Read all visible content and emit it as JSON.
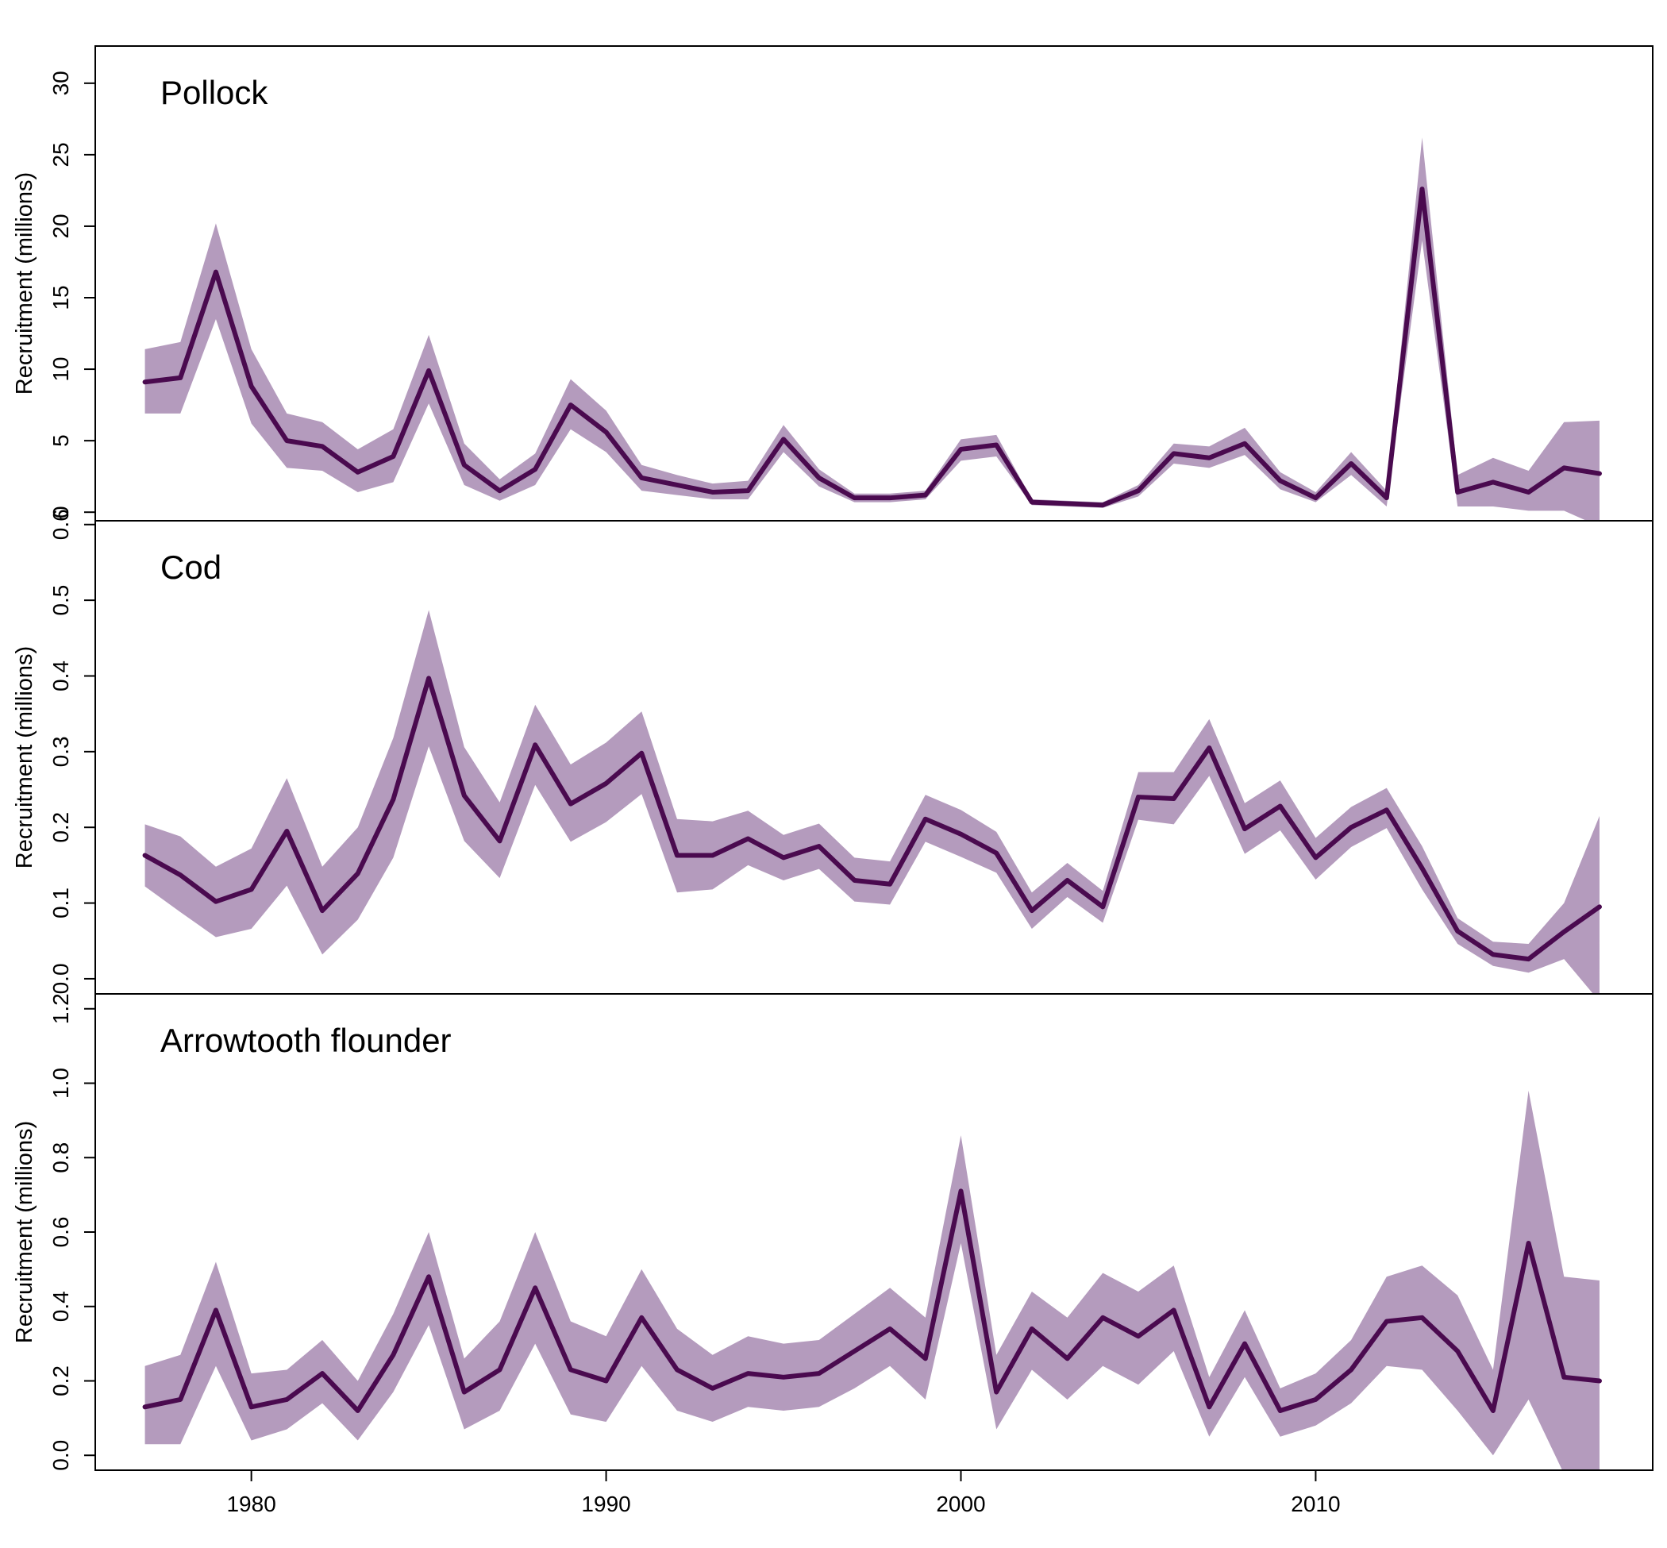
{
  "colors": {
    "line": "#4a0a4f",
    "band": "#b49bbd",
    "axis": "#000000"
  },
  "chart_data": [
    {
      "type": "line",
      "title": "Pollock",
      "ylabel": "Recruitment (millions)",
      "ylim": [
        -0.6,
        32.6
      ],
      "yticks": [
        0,
        5,
        10,
        15,
        20,
        25,
        30
      ],
      "ytick_labels": [
        "0",
        "5",
        "10",
        "15",
        "20",
        "25",
        "30"
      ],
      "x": [
        1977,
        1978,
        1979,
        1980,
        1981,
        1982,
        1983,
        1984,
        1985,
        1986,
        1987,
        1988,
        1989,
        1990,
        1991,
        1992,
        1993,
        1994,
        1995,
        1996,
        1997,
        1998,
        1999,
        2000,
        2001,
        2002,
        2003,
        2004,
        2005,
        2006,
        2007,
        2008,
        2009,
        2010,
        2011,
        2012,
        2013,
        2014,
        2015,
        2016,
        2017,
        2018
      ],
      "series": [
        {
          "values": [
            9.1,
            9.4,
            16.8,
            8.8,
            5.0,
            4.6,
            2.8,
            3.9,
            9.9,
            3.3,
            1.5,
            3.0,
            7.5,
            5.6,
            2.4,
            1.9,
            1.4,
            1.5,
            5.1,
            2.4,
            1.0,
            1.0,
            1.2,
            4.4,
            4.7,
            0.7,
            0.6,
            0.5,
            1.5,
            4.1,
            3.8,
            4.8,
            2.2,
            1.0,
            3.4,
            1.0,
            22.6,
            1.4,
            2.1,
            1.4,
            3.1,
            2.7
          ],
          "lower": [
            6.9,
            6.9,
            13.5,
            6.2,
            3.1,
            2.9,
            1.4,
            2.1,
            7.6,
            1.9,
            0.8,
            1.9,
            5.8,
            4.2,
            1.5,
            1.2,
            0.9,
            0.9,
            4.2,
            1.8,
            0.7,
            0.7,
            0.9,
            3.6,
            3.9,
            0.5,
            0.4,
            0.3,
            1.1,
            3.4,
            3.1,
            4.0,
            1.6,
            0.7,
            2.6,
            0.4,
            19.0,
            0.4,
            0.4,
            0.1,
            0.1,
            -1.0
          ],
          "upper": [
            11.4,
            11.9,
            20.2,
            11.4,
            6.9,
            6.3,
            4.4,
            5.8,
            12.4,
            4.8,
            2.3,
            4.1,
            9.3,
            7.1,
            3.3,
            2.6,
            2.0,
            2.2,
            6.1,
            3.0,
            1.3,
            1.3,
            1.5,
            5.1,
            5.4,
            0.9,
            0.8,
            0.7,
            1.9,
            4.8,
            4.6,
            5.9,
            2.8,
            1.4,
            4.2,
            1.5,
            26.2,
            2.6,
            3.8,
            2.9,
            6.3,
            6.4
          ]
        }
      ]
    },
    {
      "type": "line",
      "title": "Cod",
      "ylabel": "Recruitment (millions)",
      "ylim": [
        -0.02,
        0.605
      ],
      "yticks": [
        0.0,
        0.1,
        0.2,
        0.3,
        0.4,
        0.5,
        0.6
      ],
      "ytick_labels": [
        "0.0",
        "0.1",
        "0.2",
        "0.3",
        "0.4",
        "0.5",
        "0.6"
      ],
      "x": [
        1977,
        1978,
        1979,
        1980,
        1981,
        1982,
        1983,
        1984,
        1985,
        1986,
        1987,
        1988,
        1989,
        1990,
        1991,
        1992,
        1993,
        1994,
        1995,
        1996,
        1997,
        1998,
        1999,
        2000,
        2001,
        2002,
        2003,
        2004,
        2005,
        2006,
        2007,
        2008,
        2009,
        2010,
        2011,
        2012,
        2013,
        2014,
        2015,
        2016,
        2017,
        2018
      ],
      "series": [
        {
          "values": [
            0.163,
            0.137,
            0.102,
            0.118,
            0.195,
            0.09,
            0.139,
            0.237,
            0.397,
            0.242,
            0.182,
            0.309,
            0.231,
            0.258,
            0.298,
            0.163,
            0.163,
            0.185,
            0.16,
            0.175,
            0.13,
            0.125,
            0.211,
            0.191,
            0.166,
            0.09,
            0.13,
            0.095,
            0.24,
            0.238,
            0.305,
            0.198,
            0.228,
            0.16,
            0.2,
            0.223,
            0.146,
            0.063,
            0.032,
            0.026,
            0.062,
            0.095
          ],
          "lower": [
            0.122,
            0.088,
            0.055,
            0.066,
            0.123,
            0.032,
            0.078,
            0.16,
            0.307,
            0.182,
            0.133,
            0.256,
            0.181,
            0.207,
            0.244,
            0.114,
            0.118,
            0.15,
            0.13,
            0.145,
            0.102,
            0.098,
            0.181,
            0.161,
            0.14,
            0.066,
            0.108,
            0.074,
            0.21,
            0.204,
            0.268,
            0.165,
            0.196,
            0.131,
            0.174,
            0.199,
            0.118,
            0.046,
            0.017,
            0.008,
            0.026,
            -0.03
          ],
          "upper": [
            0.204,
            0.188,
            0.148,
            0.172,
            0.265,
            0.148,
            0.2,
            0.318,
            0.487,
            0.306,
            0.233,
            0.362,
            0.283,
            0.312,
            0.353,
            0.211,
            0.208,
            0.222,
            0.19,
            0.205,
            0.16,
            0.155,
            0.243,
            0.223,
            0.194,
            0.114,
            0.153,
            0.116,
            0.273,
            0.273,
            0.343,
            0.232,
            0.262,
            0.186,
            0.227,
            0.252,
            0.175,
            0.08,
            0.049,
            0.046,
            0.1,
            0.215
          ]
        }
      ]
    },
    {
      "type": "line",
      "title": "Arrowtooth flounder",
      "ylabel": "Recruitment (millions)",
      "ylim": [
        -0.04,
        1.24
      ],
      "yticks": [
        0.0,
        0.2,
        0.4,
        0.6,
        0.8,
        1.0,
        1.2
      ],
      "ytick_labels": [
        "0.0",
        "0.2",
        "0.4",
        "0.6",
        "0.8",
        "1.0",
        "1.2"
      ],
      "x": [
        1977,
        1978,
        1979,
        1980,
        1981,
        1982,
        1983,
        1984,
        1985,
        1986,
        1987,
        1988,
        1989,
        1990,
        1991,
        1992,
        1993,
        1994,
        1995,
        1996,
        1997,
        1998,
        1999,
        2000,
        2001,
        2002,
        2003,
        2004,
        2005,
        2006,
        2007,
        2008,
        2009,
        2010,
        2011,
        2012,
        2013,
        2014,
        2015,
        2016,
        2017,
        2018
      ],
      "xticks": [
        1980,
        1990,
        2000,
        2010
      ],
      "xtick_labels": [
        "1980",
        "1990",
        "2000",
        "2010"
      ],
      "series": [
        {
          "values": [
            0.13,
            0.15,
            0.39,
            0.13,
            0.15,
            0.22,
            0.12,
            0.27,
            0.48,
            0.17,
            0.23,
            0.45,
            0.23,
            0.2,
            0.37,
            0.23,
            0.18,
            0.22,
            0.21,
            0.22,
            0.28,
            0.34,
            0.26,
            0.71,
            0.17,
            0.34,
            0.26,
            0.37,
            0.32,
            0.39,
            0.13,
            0.3,
            0.12,
            0.15,
            0.23,
            0.36,
            0.37,
            0.28,
            0.12,
            0.57,
            0.21,
            0.2
          ],
          "lower": [
            0.03,
            0.03,
            0.24,
            0.04,
            0.07,
            0.14,
            0.04,
            0.17,
            0.35,
            0.07,
            0.12,
            0.3,
            0.11,
            0.09,
            0.24,
            0.12,
            0.09,
            0.13,
            0.12,
            0.13,
            0.18,
            0.24,
            0.15,
            0.57,
            0.07,
            0.23,
            0.15,
            0.24,
            0.19,
            0.28,
            0.05,
            0.21,
            0.05,
            0.08,
            0.14,
            0.24,
            0.23,
            0.12,
            0.0,
            0.15,
            -0.05,
            -0.05
          ],
          "upper": [
            0.24,
            0.27,
            0.52,
            0.22,
            0.23,
            0.31,
            0.2,
            0.38,
            0.6,
            0.26,
            0.36,
            0.6,
            0.36,
            0.32,
            0.5,
            0.34,
            0.27,
            0.32,
            0.3,
            0.31,
            0.38,
            0.45,
            0.37,
            0.86,
            0.27,
            0.44,
            0.37,
            0.49,
            0.44,
            0.51,
            0.21,
            0.39,
            0.18,
            0.22,
            0.31,
            0.48,
            0.51,
            0.43,
            0.23,
            0.98,
            0.48,
            0.47
          ]
        }
      ]
    }
  ]
}
